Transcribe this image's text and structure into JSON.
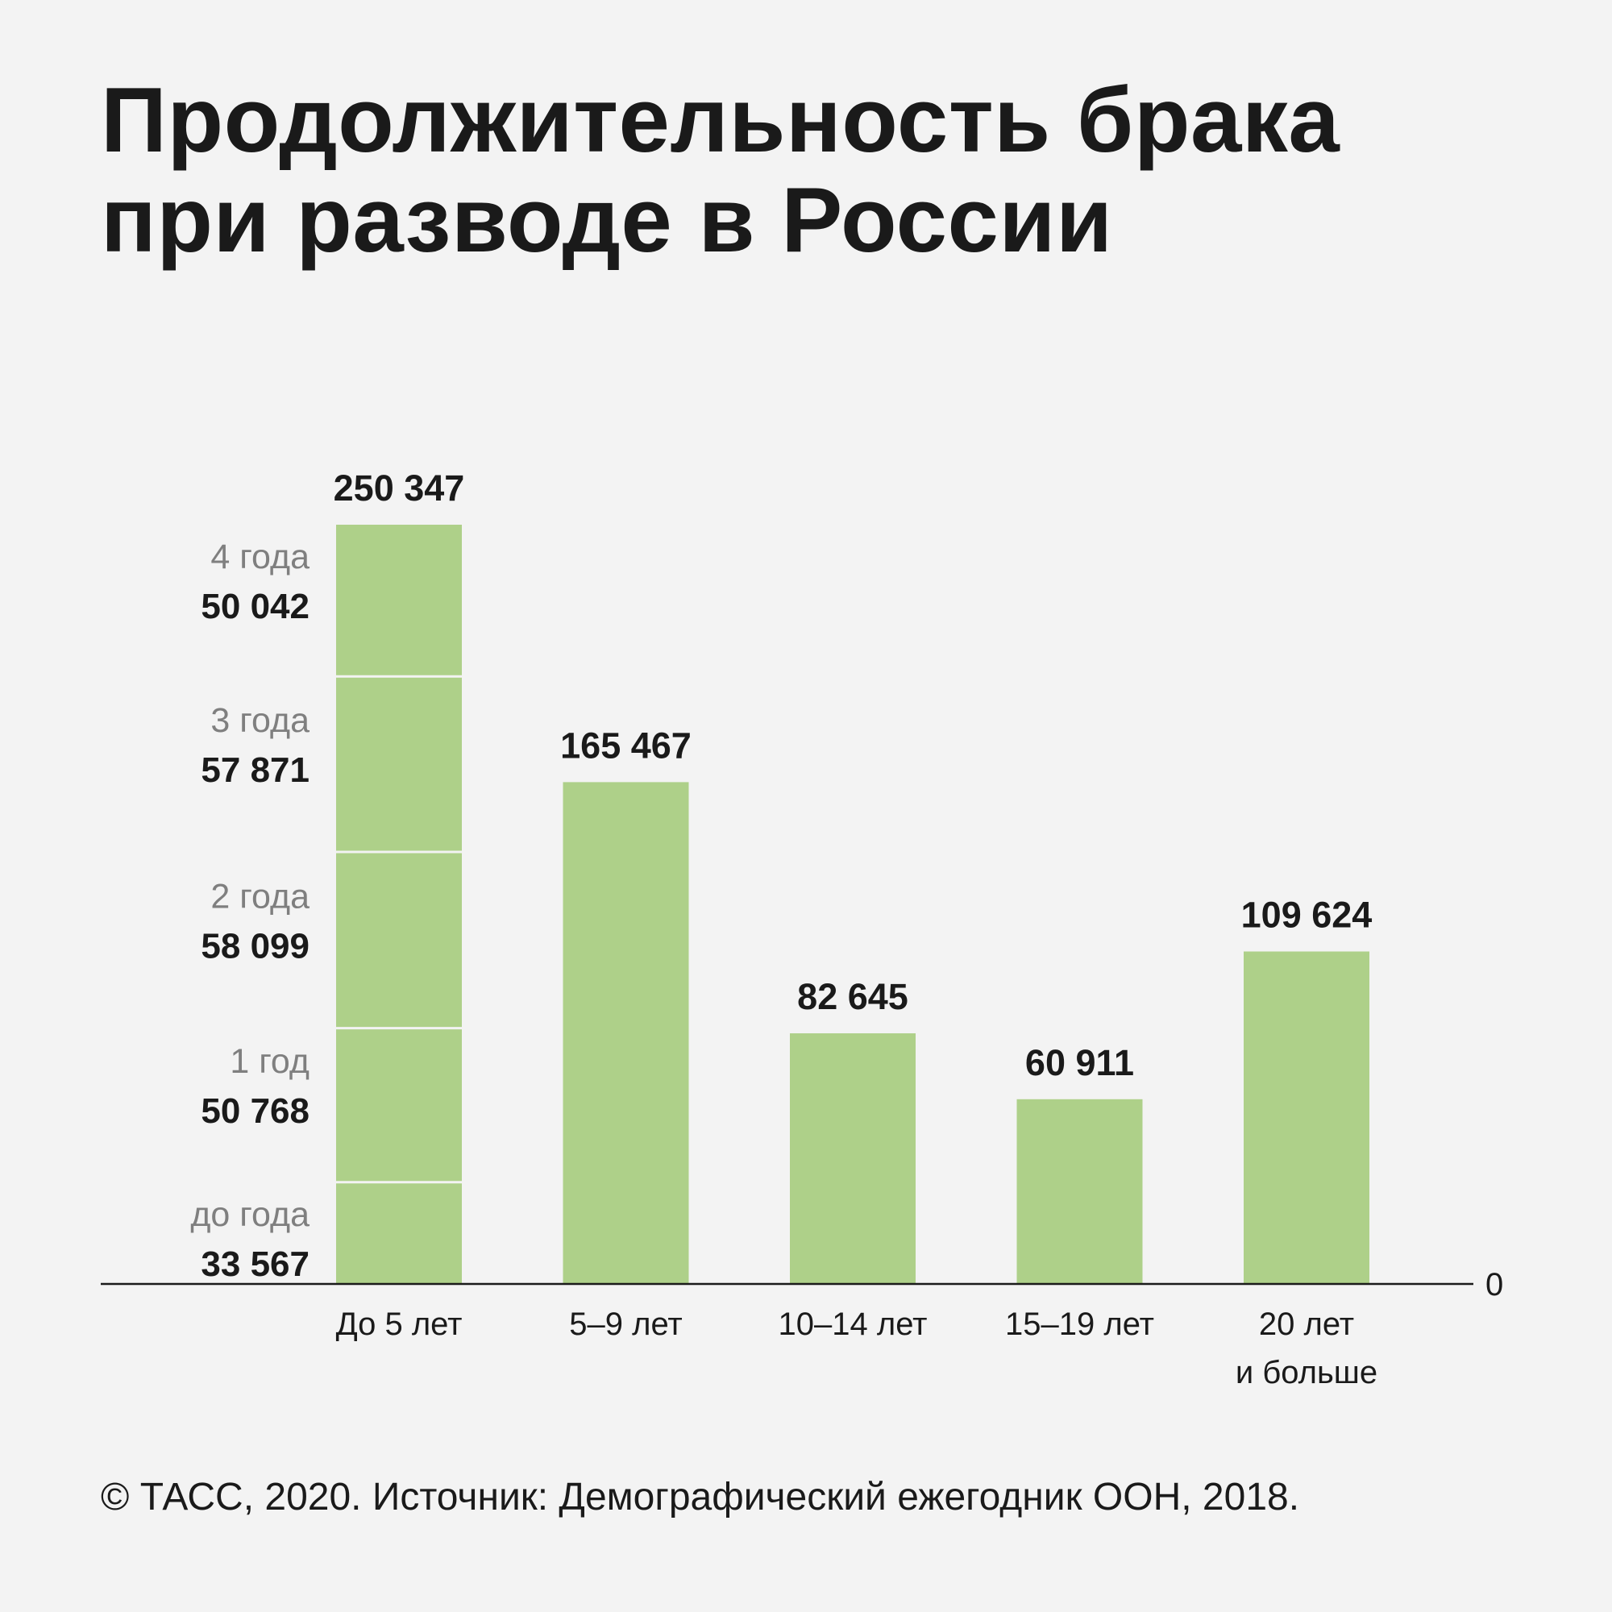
{
  "title": {
    "line1": "Продолжительность брака",
    "line2": "при разводе в России"
  },
  "footer": "© ТАСС, 2020. Источник: Демографический ежегодник ООН, 2018.",
  "colors": {
    "bar": "#aed089",
    "segment_divider": "#f3f3f3",
    "axis": "#1a1a1a",
    "value_label": "#1a1a1a",
    "sublabel_year": "#7f7f7f"
  },
  "chart_data": {
    "type": "bar",
    "title": "Продолжительность брака при разводе в России",
    "xlabel": "",
    "ylabel": "",
    "ylim": [
      0,
      250347
    ],
    "zero_label": "0",
    "grid": false,
    "categories": [
      {
        "label_lines": [
          "До 5 лет"
        ],
        "value": 250347,
        "value_label": "250 347"
      },
      {
        "label_lines": [
          "5–9 лет"
        ],
        "value": 165467,
        "value_label": "165 467"
      },
      {
        "label_lines": [
          "10–14 лет"
        ],
        "value": 82645,
        "value_label": "82 645"
      },
      {
        "label_lines": [
          "15–19 лет"
        ],
        "value": 60911,
        "value_label": "60 911"
      },
      {
        "label_lines": [
          "20 лет",
          "и больше"
        ],
        "value": 109624,
        "value_label": "109 624"
      }
    ],
    "breakdown": {
      "category_index": 0,
      "segments": [
        {
          "label": "до года",
          "value": 33567,
          "value_label": "33 567"
        },
        {
          "label": "1 год",
          "value": 50768,
          "value_label": "50 768"
        },
        {
          "label": "2 года",
          "value": 58099,
          "value_label": "58 099"
        },
        {
          "label": "3 года",
          "value": 57871,
          "value_label": "57 871"
        },
        {
          "label": "4 года",
          "value": 50042,
          "value_label": "50 042"
        }
      ]
    }
  }
}
